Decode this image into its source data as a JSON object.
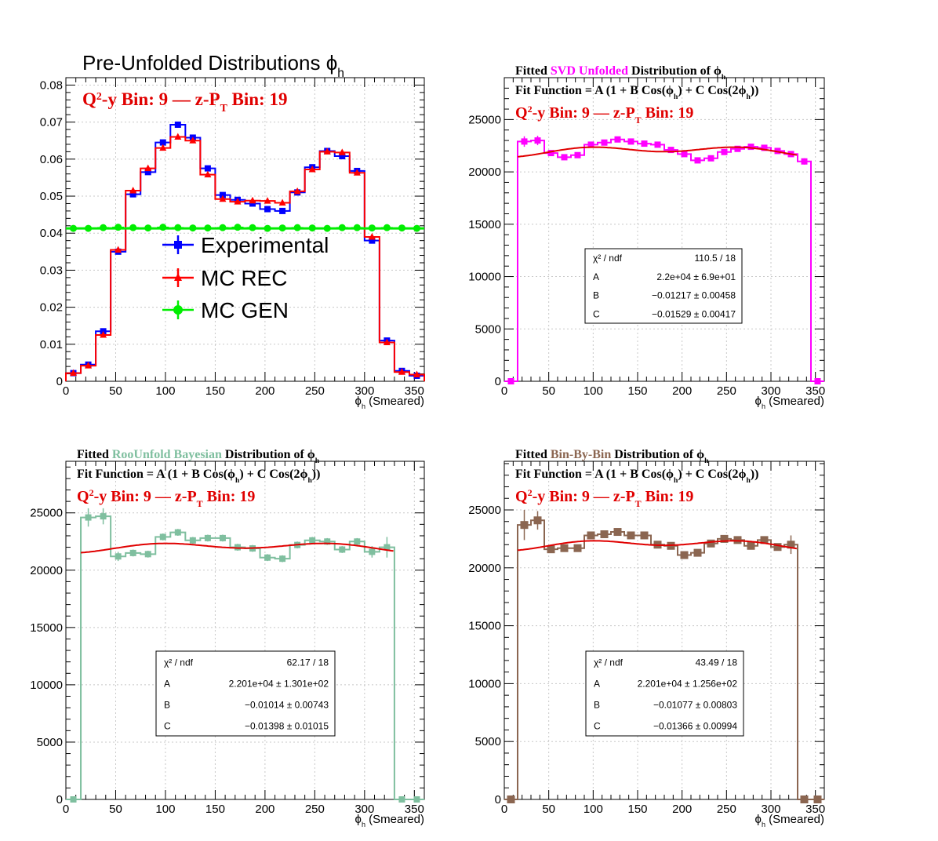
{
  "colors": {
    "exp": "#0000ff",
    "rec": "#ff0000",
    "gen": "#00ee00",
    "svd": "#ff00ff",
    "bayes": "#7fbf9f",
    "bbb": "#8b6651",
    "fit": "#e00000"
  },
  "chart_data": [
    {
      "type": "line",
      "title": "Pre-Unfolded Distributions ϕ",
      "title_sub": "h",
      "bin_label_parts": [
        "Q",
        "2",
        "-y Bin: 9  —   z-P",
        "T",
        " Bin: 19"
      ],
      "xlabel": "ϕ",
      "xlabel_sub": "h",
      "xlabel_tail": " (Smeared)",
      "xlim": [
        0,
        360
      ],
      "ylim": [
        0,
        0.082
      ],
      "xticks": [
        0,
        50,
        100,
        150,
        200,
        250,
        300,
        350
      ],
      "yticks": [
        0,
        0.01,
        0.02,
        0.03,
        0.04,
        0.05,
        0.06,
        0.07,
        0.08
      ],
      "ytick_labels": [
        "0",
        "0.01",
        "0.02",
        "0.03",
        "0.04",
        "0.05",
        "0.06",
        "0.07",
        "0.08"
      ],
      "legend": [
        "Experimental",
        "MC REC",
        "MC GEN"
      ],
      "grid": true,
      "series": [
        {
          "name": "Experimental",
          "color_key": "exp",
          "marker": "square",
          "values": [
            0.0022,
            0.0045,
            0.0135,
            0.035,
            0.0505,
            0.0565,
            0.0645,
            0.0693,
            0.0658,
            0.0575,
            0.0503,
            0.049,
            0.048,
            0.0465,
            0.046,
            0.051,
            0.0578,
            0.0622,
            0.0608,
            0.0568,
            0.038,
            0.011,
            0.0028,
            0.0015
          ]
        },
        {
          "name": "MC REC",
          "color_key": "rec",
          "marker": "triangle",
          "values": [
            0.0022,
            0.0042,
            0.0125,
            0.0355,
            0.0515,
            0.0575,
            0.063,
            0.066,
            0.065,
            0.0558,
            0.0492,
            0.0485,
            0.0488,
            0.0487,
            0.0482,
            0.0513,
            0.0572,
            0.062,
            0.0618,
            0.0563,
            0.039,
            0.0105,
            0.0025,
            0.0018
          ]
        },
        {
          "name": "MC GEN",
          "color_key": "gen",
          "marker": "circle",
          "values": [
            0.0413,
            0.0413,
            0.0415,
            0.0416,
            0.0415,
            0.0414,
            0.0416,
            0.0415,
            0.0414,
            0.0414,
            0.0415,
            0.0416,
            0.0415,
            0.0413,
            0.0414,
            0.0415,
            0.0414,
            0.0413,
            0.0415,
            0.0415,
            0.0414,
            0.0415,
            0.0414,
            0.0413
          ]
        }
      ]
    },
    {
      "type": "line",
      "title_parts": [
        "Fitted  ",
        "SVD Unfolded",
        " Distribution of  ϕ",
        "h"
      ],
      "fit_label_parts": [
        "Fit Function = A (1 + B Cos(ϕ",
        "h",
        ") + C Cos(2ϕ",
        "h",
        "))"
      ],
      "bin_label_parts": [
        "Q",
        "2",
        "-y Bin: 9  —   z-P",
        "T",
        " Bin: 19"
      ],
      "xlabel": "ϕ",
      "xlabel_sub": "h",
      "xlabel_tail": " (Smeared)",
      "xlim": [
        0,
        360
      ],
      "ylim": [
        0,
        29000
      ],
      "xticks": [
        0,
        50,
        100,
        150,
        200,
        250,
        300,
        350
      ],
      "yticks": [
        0,
        5000,
        10000,
        15000,
        20000,
        25000
      ],
      "ytick_labels": [
        "0",
        "5000",
        "10000",
        "15000",
        "20000",
        "25000"
      ],
      "grid": true,
      "series": [
        {
          "name": "SVD Unfolded",
          "color_key": "svd",
          "marker": "square",
          "values": [
            0,
            22900,
            23000,
            21800,
            21400,
            21600,
            22600,
            22800,
            23100,
            22900,
            22700,
            22600,
            22100,
            21700,
            21100,
            21300,
            21900,
            22200,
            22400,
            22300,
            22000,
            21700,
            21000,
            0
          ],
          "errors": [
            0,
            500,
            450,
            200,
            200,
            200,
            200,
            200,
            200,
            200,
            200,
            200,
            200,
            200,
            200,
            200,
            200,
            200,
            200,
            200,
            200,
            200,
            300,
            0
          ]
        }
      ],
      "fit": {
        "A": 22000,
        "B": -0.01217,
        "C": -0.01529,
        "range": [
          15,
          330
        ]
      },
      "stats": {
        "rows": [
          [
            "χ² / ndf",
            "110.5 / 18"
          ],
          [
            "A",
            "2.2e+04 ± 6.9e+01"
          ],
          [
            "B",
            "−0.01217 ± 0.00458"
          ],
          [
            "C",
            "−0.01529 ± 0.00417"
          ]
        ]
      }
    },
    {
      "type": "line",
      "title_parts": [
        "Fitted  ",
        "RooUnfold Bayesian",
        " Distribution of  ϕ",
        "h"
      ],
      "fit_label_parts": [
        "Fit Function = A (1 + B Cos(ϕ",
        "h",
        ") + C Cos(2ϕ",
        "h",
        "))"
      ],
      "bin_label_parts": [
        "Q",
        "2",
        "-y Bin: 9  —   z-P",
        "T",
        " Bin: 19"
      ],
      "xlabel": "ϕ",
      "xlabel_sub": "h",
      "xlabel_tail": " (Smeared)",
      "xlim": [
        0,
        360
      ],
      "ylim": [
        0,
        29500
      ],
      "xticks": [
        0,
        50,
        100,
        150,
        200,
        250,
        300,
        350
      ],
      "yticks": [
        0,
        5000,
        10000,
        15000,
        20000,
        25000
      ],
      "ytick_labels": [
        "0",
        "5000",
        "10000",
        "15000",
        "20000",
        "25000"
      ],
      "grid": true,
      "series": [
        {
          "name": "RooUnfold Bayesian",
          "color_key": "bayes",
          "marker": "square",
          "values": [
            0,
            24600,
            24700,
            21200,
            21500,
            21400,
            22900,
            23300,
            22600,
            22800,
            22800,
            22000,
            21900,
            21100,
            21000,
            22200,
            22600,
            22500,
            21800,
            22500,
            21600,
            22000,
            0,
            0
          ],
          "errors": [
            0,
            800,
            700,
            400,
            300,
            300,
            300,
            300,
            300,
            300,
            300,
            300,
            300,
            300,
            300,
            300,
            300,
            300,
            300,
            300,
            500,
            900,
            0,
            0
          ]
        }
      ],
      "fit": {
        "A": 22010,
        "B": -0.01014,
        "C": -0.01398,
        "range": [
          15,
          330
        ]
      },
      "stats": {
        "rows": [
          [
            "χ² / ndf",
            "62.17 / 18"
          ],
          [
            "A",
            "2.201e+04 ± 1.301e+02"
          ],
          [
            "B",
            "−0.01014 ± 0.00743"
          ],
          [
            "C",
            "−0.01398 ± 0.01015"
          ]
        ]
      }
    },
    {
      "type": "line",
      "title_parts": [
        "Fitted  ",
        "Bin-By-Bin",
        " Distribution of  ϕ",
        "h"
      ],
      "fit_label_parts": [
        "Fit Function = A (1 + B Cos(ϕ",
        "h",
        ") + C Cos(2ϕ",
        "h",
        "))"
      ],
      "bin_label_parts": [
        "Q",
        "2",
        "-y Bin: 9  —   z-P",
        "T",
        " Bin: 19"
      ],
      "xlabel": "ϕ",
      "xlabel_sub": "h",
      "xlabel_tail": " (Smeared)",
      "xlim": [
        0,
        360
      ],
      "ylim": [
        0,
        29200
      ],
      "xticks": [
        0,
        50,
        100,
        150,
        200,
        250,
        300,
        350
      ],
      "yticks": [
        0,
        5000,
        10000,
        15000,
        20000,
        25000
      ],
      "ytick_labels": [
        "0",
        "5000",
        "10000",
        "15000",
        "20000",
        "25000"
      ],
      "grid": true,
      "series": [
        {
          "name": "Bin-By-Bin",
          "color_key": "bbb",
          "marker": "square",
          "values": [
            0,
            23700,
            24100,
            21600,
            21700,
            21700,
            22800,
            22900,
            23100,
            22800,
            22800,
            22000,
            21900,
            21100,
            21300,
            22100,
            22500,
            22400,
            21900,
            22400,
            21800,
            22000,
            0,
            0
          ],
          "errors": [
            0,
            1300,
            800,
            300,
            300,
            300,
            300,
            300,
            300,
            300,
            300,
            300,
            300,
            300,
            300,
            300,
            300,
            300,
            300,
            300,
            300,
            800,
            0,
            0
          ]
        }
      ],
      "fit": {
        "A": 22010,
        "B": -0.01077,
        "C": -0.01366,
        "range": [
          15,
          330
        ]
      },
      "stats": {
        "rows": [
          [
            "χ² / ndf",
            "43.49 / 18"
          ],
          [
            "A",
            "2.201e+04 ± 1.256e+02"
          ],
          [
            "B",
            "−0.01077 ± 0.00803"
          ],
          [
            "C",
            "−0.01366 ± 0.00994"
          ]
        ]
      }
    }
  ]
}
